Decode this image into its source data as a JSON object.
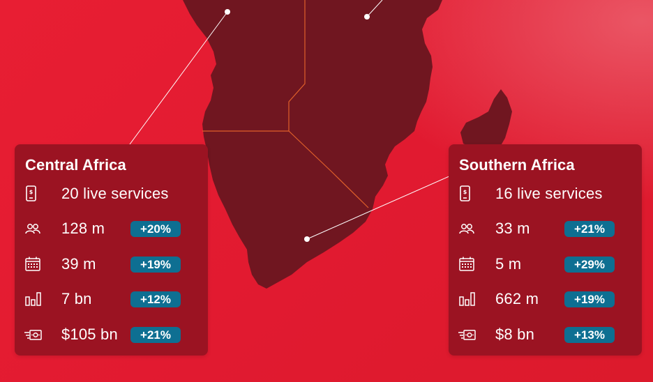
{
  "regions": [
    {
      "title": "Central Africa",
      "rows": [
        {
          "icon": "mobile-money-icon",
          "value": "20 live services",
          "change": ""
        },
        {
          "icon": "users-icon",
          "value": "128 m",
          "change": "+20%"
        },
        {
          "icon": "calendar-icon",
          "value": "39 m",
          "change": "+19%"
        },
        {
          "icon": "bar-chart-icon",
          "value": "7 bn",
          "change": "+12%"
        },
        {
          "icon": "cash-icon",
          "value": "$105 bn",
          "change": "+21%"
        }
      ]
    },
    {
      "title": "Southern Africa",
      "rows": [
        {
          "icon": "mobile-money-icon",
          "value": "16 live services",
          "change": ""
        },
        {
          "icon": "users-icon",
          "value": "33 m",
          "change": "+21%"
        },
        {
          "icon": "calendar-icon",
          "value": "5 m",
          "change": "+29%"
        },
        {
          "icon": "bar-chart-icon",
          "value": "662 m",
          "change": "+19%"
        },
        {
          "icon": "cash-icon",
          "value": "$8 bn",
          "change": "+13%"
        }
      ]
    }
  ],
  "colors": {
    "background": "#e81e33",
    "land": "#701620",
    "card": "#9b1322",
    "badge": "#0e6f92",
    "border_line": "#e0602a"
  }
}
